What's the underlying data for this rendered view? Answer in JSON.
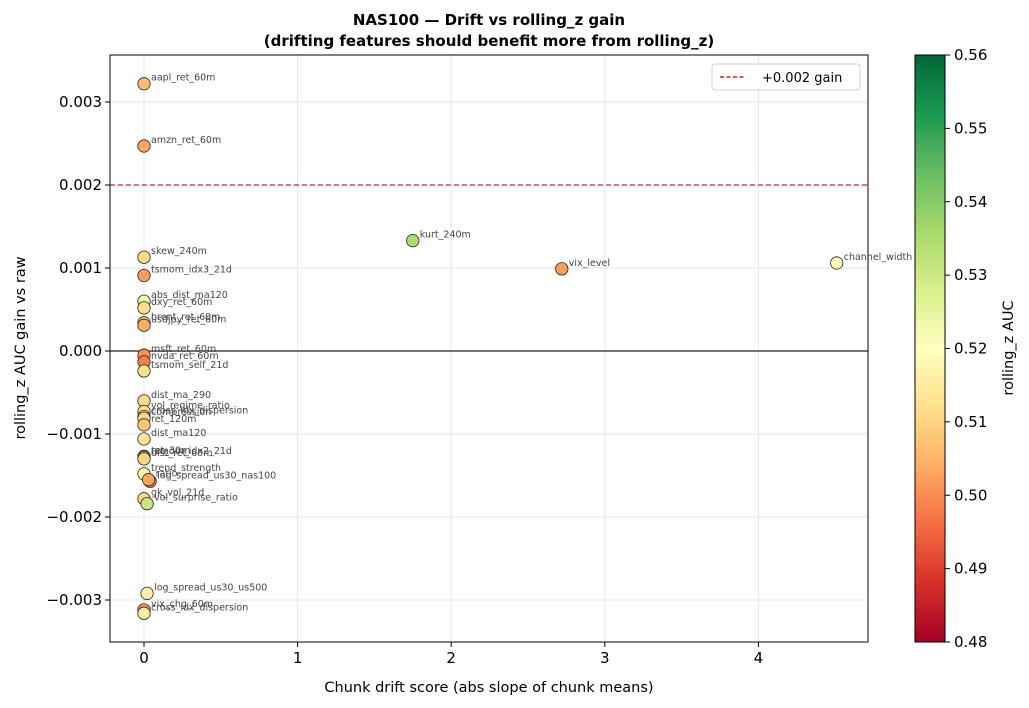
{
  "chart_data": {
    "type": "scatter",
    "title": "NAS100 — Drift vs rolling_z gain",
    "subtitle": "(drifting features should benefit more from rolling_z)",
    "xlabel": "Chunk drift score (abs slope of chunk means)",
    "ylabel": "rolling_z AUC gain vs raw",
    "xlim": [
      -0.22,
      4.72
    ],
    "ylim": [
      -0.00348,
      0.00355
    ],
    "x_ticks": [
      0,
      1,
      2,
      3,
      4
    ],
    "x_tick_labels": [
      "0",
      "1",
      "2",
      "3",
      "4"
    ],
    "y_ticks": [
      -0.003,
      -0.002,
      -0.001,
      0.0,
      0.001,
      0.002,
      0.003
    ],
    "y_tick_labels": [
      "−0.003",
      "−0.002",
      "−0.001",
      "0.000",
      "0.001",
      "0.002",
      "0.003"
    ],
    "grid": true,
    "hline_zero": {
      "y": 0.0,
      "color": "#222222"
    },
    "reference_line": {
      "y": 0.002,
      "color": "#e41a1c",
      "style": "dashed",
      "label": "+0.002 gain"
    },
    "legend": {
      "position": "upper right",
      "entries": [
        "+0.002 gain"
      ]
    },
    "colorbar": {
      "label": "rolling_z AUC",
      "colormap": "RdYlGn",
      "range": [
        0.48,
        0.56
      ],
      "ticks": [
        "0.48",
        "0.49",
        "0.50",
        "0.51",
        "0.52",
        "0.53",
        "0.54",
        "0.55",
        "0.56"
      ]
    },
    "points": [
      {
        "label": "aapl_ret_60m",
        "x": 0.0,
        "y": 0.00322,
        "auc": 0.506
      },
      {
        "label": "amzn_ret_60m",
        "x": 0.0,
        "y": 0.00247,
        "auc": 0.503
      },
      {
        "label": "skew_240m",
        "x": 0.0,
        "y": 0.00113,
        "auc": 0.511
      },
      {
        "label": "tsmom_idx3_21d",
        "x": 0.0,
        "y": 0.00091,
        "auc": 0.502
      },
      {
        "label": "kurt_240m",
        "x": 1.75,
        "y": 0.00133,
        "auc": 0.535
      },
      {
        "label": "vix_level",
        "x": 2.72,
        "y": 0.00099,
        "auc": 0.502
      },
      {
        "label": "channel_width",
        "x": 4.51,
        "y": 0.00106,
        "auc": 0.518
      },
      {
        "label": "abs_dist_ma120",
        "x": 0.0,
        "y": 0.0006,
        "auc": 0.522
      },
      {
        "label": "dxy_ret_60m",
        "x": 0.0,
        "y": 0.00052,
        "auc": 0.512
      },
      {
        "label": "brent_ret_60m",
        "x": 0.0,
        "y": 0.00034,
        "auc": 0.508
      },
      {
        "label": "usdjpy_ret_60m",
        "x": 0.0,
        "y": 0.00031,
        "auc": 0.504
      },
      {
        "label": "msft_ret_60m",
        "x": 0.0,
        "y": -5e-05,
        "auc": 0.5
      },
      {
        "label": "nvda_ret_60m",
        "x": 0.0,
        "y": -0.00013,
        "auc": 0.498
      },
      {
        "label": "tsmom_self_21d",
        "x": 0.0,
        "y": -0.00024,
        "auc": 0.512
      },
      {
        "label": "dist_ma_290",
        "x": 0.0,
        "y": -0.0006,
        "auc": 0.511
      },
      {
        "label": "vol_regime_ratio",
        "x": 0.0,
        "y": -0.00073,
        "auc": 0.512
      },
      {
        "label": "cross_idx_dispersion",
        "x": 0.0,
        "y": -0.00079,
        "auc": 0.513
      },
      {
        "label": "compression",
        "x": 0.0,
        "y": -0.00081,
        "auc": 0.51
      },
      {
        "label": "ret_120m",
        "x": 0.0,
        "y": -0.00089,
        "auc": 0.508
      },
      {
        "label": "dist_ma120",
        "x": 0.0,
        "y": -0.00106,
        "auc": 0.513
      },
      {
        "label": "ret_30m",
        "x": 0.0,
        "y": -0.00127,
        "auc": 0.509
      },
      {
        "label": "tsmom_idx2_21d",
        "x": 0.0,
        "y": -0.00128,
        "auc": 0.511
      },
      {
        "label": "dist_ret_60m",
        "x": 0.0,
        "y": -0.0013,
        "auc": 0.51
      },
      {
        "label": "trend_strength",
        "x": 0.0,
        "y": -0.00148,
        "auc": 0.517
      },
      {
        "label": "log_spread_us30_nas100",
        "x": 0.04,
        "y": -0.00157,
        "auc": 0.498
      },
      {
        "label": "ratio",
        "x": 0.03,
        "y": -0.00155,
        "auc": 0.503
      },
      {
        "label": "gk_vol_21d",
        "x": 0.0,
        "y": -0.00178,
        "auc": 0.511
      },
      {
        "label": "vol_surprise_ratio",
        "x": 0.02,
        "y": -0.00184,
        "auc": 0.531
      },
      {
        "label": "log_spread_us30_us500",
        "x": 0.02,
        "y": -0.00292,
        "auc": 0.516
      },
      {
        "label": "vix_chg_60m",
        "x": 0.0,
        "y": -0.00312,
        "auc": 0.501
      },
      {
        "label": "cross_idx_dispersion",
        "x": 0.0,
        "y": -0.00316,
        "auc": 0.515
      }
    ]
  }
}
